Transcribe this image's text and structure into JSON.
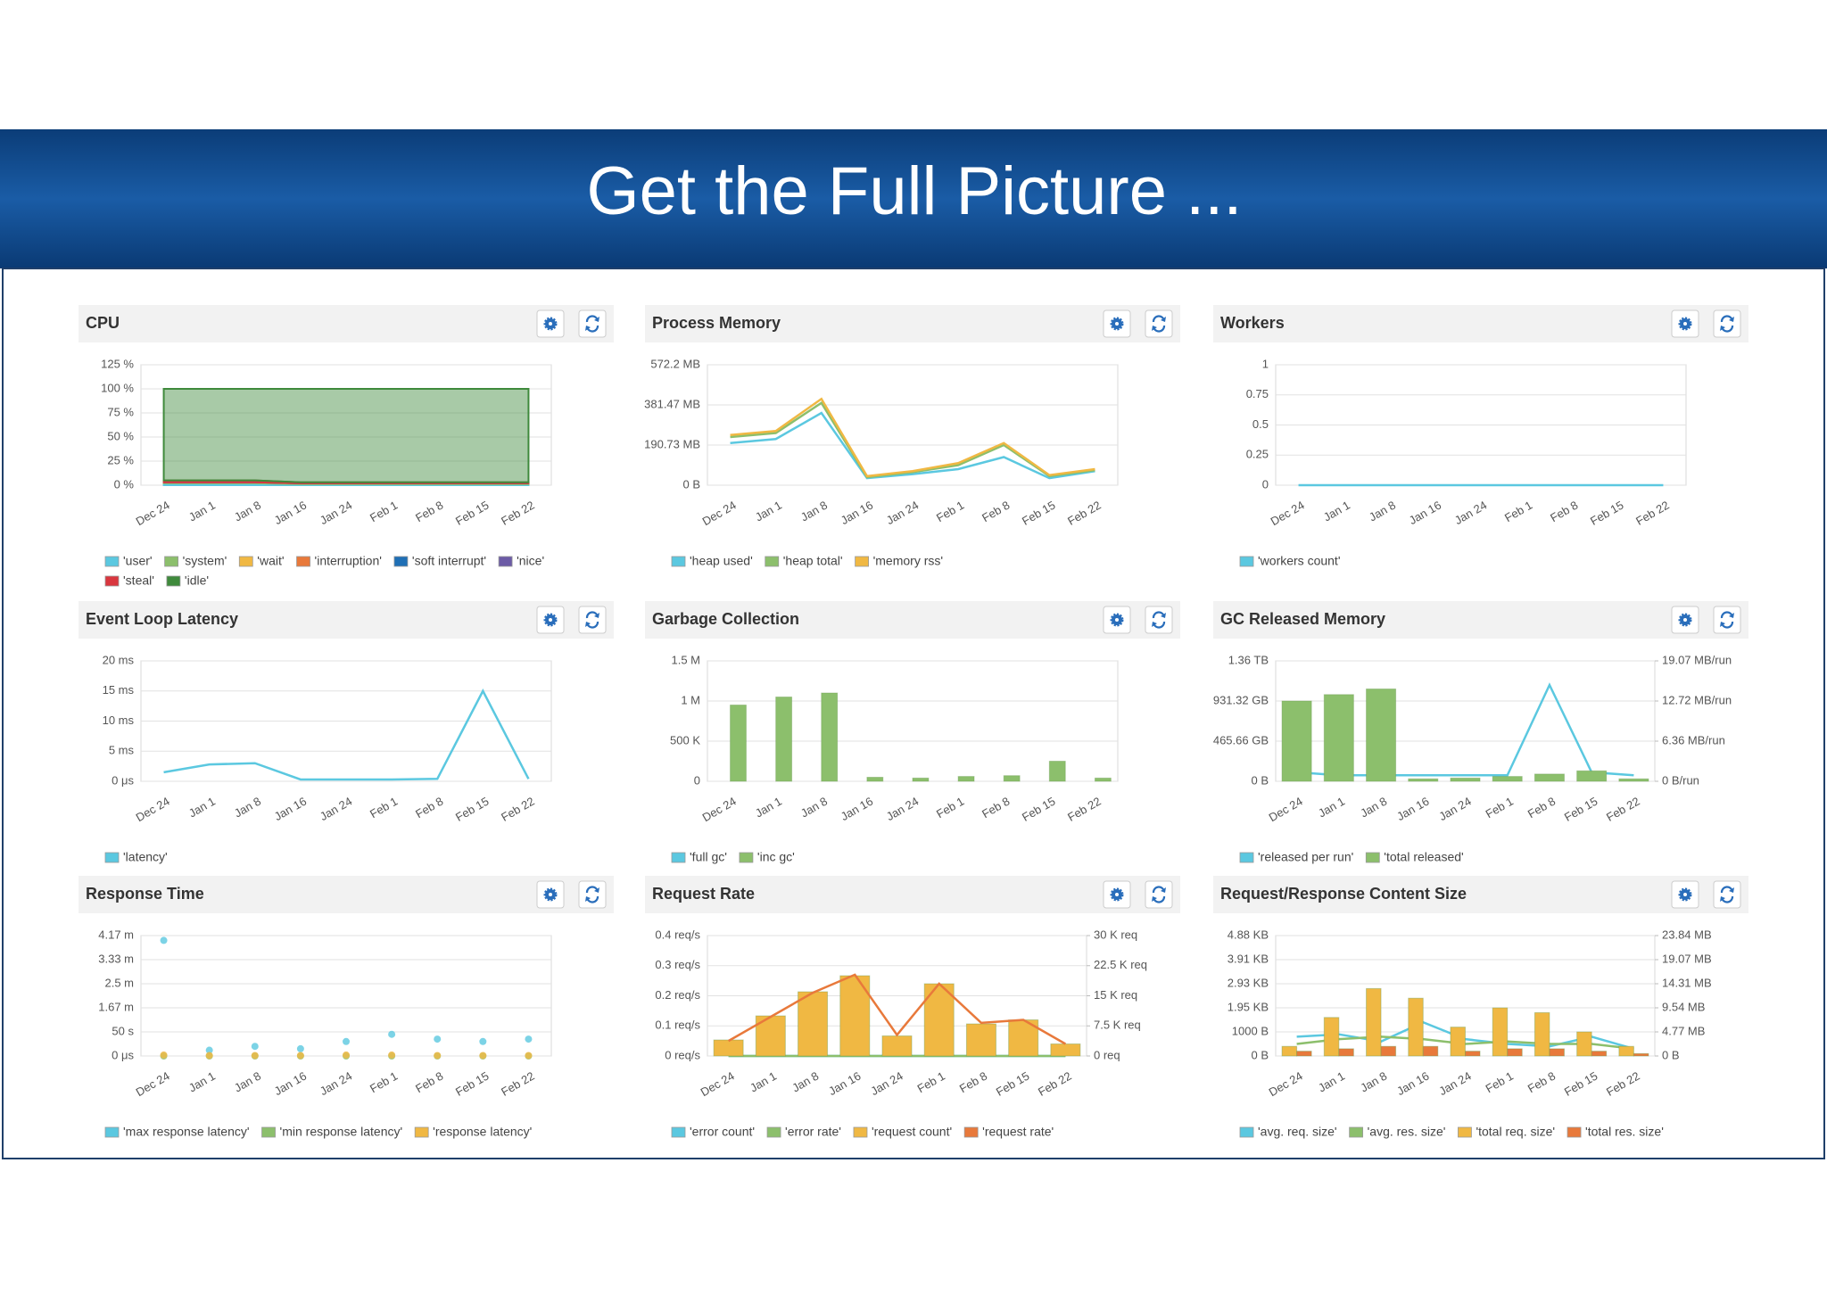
{
  "slide_title": "Get the Full Picture ...",
  "chart_data": [
    {
      "type": "area",
      "title": "CPU",
      "categories": [
        "Dec 24",
        "Jan 1",
        "Jan 8",
        "Jan 16",
        "Jan 24",
        "Feb 1",
        "Feb 8",
        "Feb 15",
        "Feb 22"
      ],
      "ylim": [
        0,
        125
      ],
      "yticks": [
        {
          "value": 0,
          "label": "0 %"
        },
        {
          "value": 25,
          "label": "25 %"
        },
        {
          "value": 50,
          "label": "50 %"
        },
        {
          "value": 75,
          "label": "75 %"
        },
        {
          "value": 100,
          "label": "100 %"
        },
        {
          "value": 125,
          "label": "125 %"
        }
      ],
      "grid": true,
      "legend": "bottom",
      "series": [
        {
          "name": "'user'",
          "color": "#5bc8e0",
          "values": [
            2,
            2,
            2,
            1,
            1,
            1,
            1,
            1,
            1
          ]
        },
        {
          "name": "'system'",
          "color": "#8cbf6c",
          "values": [
            1,
            1,
            1,
            1,
            1,
            1,
            1,
            1,
            1
          ]
        },
        {
          "name": "'wait'",
          "color": "#f0b843",
          "values": [
            0,
            0,
            0,
            0,
            0,
            0,
            0,
            0,
            0
          ]
        },
        {
          "name": "'interruption'",
          "color": "#e8793b",
          "values": [
            0,
            0,
            0,
            0,
            0,
            0,
            0,
            0,
            0
          ]
        },
        {
          "name": "'soft interrupt'",
          "color": "#1f6fb5",
          "values": [
            0,
            0,
            0,
            0,
            0,
            0,
            0,
            0,
            0
          ]
        },
        {
          "name": "'nice'",
          "color": "#6c5ba6",
          "values": [
            0,
            0,
            0,
            0,
            0,
            0,
            0,
            0,
            0
          ]
        },
        {
          "name": "'steal'",
          "color": "#d9363e",
          "values": [
            2,
            2,
            2,
            1,
            1,
            1,
            1,
            1,
            1
          ]
        },
        {
          "name": "'idle'",
          "color": "#3f8a3c",
          "values": [
            95,
            95,
            95,
            97,
            97,
            97,
            97,
            97,
            97
          ]
        }
      ]
    },
    {
      "type": "line",
      "title": "Process Memory",
      "categories": [
        "Dec 24",
        "Jan 1",
        "Jan 8",
        "Jan 16",
        "Jan 24",
        "Feb 1",
        "Feb 8",
        "Feb 15",
        "Feb 22"
      ],
      "ylim": [
        0,
        600000000
      ],
      "yticks": [
        {
          "value": 0,
          "label": "0 B"
        },
        {
          "value": 200000000,
          "label": "190.73 MB"
        },
        {
          "value": 400000000,
          "label": "381.47 MB"
        },
        {
          "value": 600000000,
          "label": "572.2 MB"
        }
      ],
      "grid": true,
      "legend": "bottom",
      "series": [
        {
          "name": "'heap used'",
          "color": "#5bc8e0",
          "values": [
            210000000,
            230000000,
            360000000,
            35000000,
            55000000,
            80000000,
            140000000,
            35000000,
            70000000
          ]
        },
        {
          "name": "'heap total'",
          "color": "#8cbf6c",
          "values": [
            240000000,
            260000000,
            410000000,
            40000000,
            65000000,
            100000000,
            200000000,
            45000000,
            75000000
          ]
        },
        {
          "name": "'memory rss'",
          "color": "#f0b843",
          "values": [
            250000000,
            270000000,
            430000000,
            45000000,
            70000000,
            110000000,
            210000000,
            50000000,
            80000000
          ]
        }
      ]
    },
    {
      "type": "line",
      "title": "Workers",
      "categories": [
        "Dec 24",
        "Jan 1",
        "Jan 8",
        "Jan 16",
        "Jan 24",
        "Feb 1",
        "Feb 8",
        "Feb 15",
        "Feb 22"
      ],
      "ylim": [
        0,
        1
      ],
      "yticks": [
        0,
        0.25,
        0.5,
        0.75,
        1
      ],
      "grid": true,
      "legend": "bottom",
      "series": [
        {
          "name": "'workers count'",
          "color": "#5bc8e0",
          "values": [
            0,
            0,
            0,
            0,
            0,
            0,
            0,
            0,
            0
          ]
        }
      ]
    },
    {
      "type": "line",
      "title": "Event Loop Latency",
      "categories": [
        "Dec 24",
        "Jan 1",
        "Jan 8",
        "Jan 16",
        "Jan 24",
        "Feb 1",
        "Feb 8",
        "Feb 15",
        "Feb 22"
      ],
      "ylim": [
        0,
        20
      ],
      "yticks": [
        {
          "value": 0,
          "label": "0 μs"
        },
        {
          "value": 5,
          "label": "5 ms"
        },
        {
          "value": 10,
          "label": "10 ms"
        },
        {
          "value": 15,
          "label": "15 ms"
        },
        {
          "value": 20,
          "label": "20 ms"
        }
      ],
      "grid": true,
      "legend": "bottom",
      "series": [
        {
          "name": "'latency'",
          "color": "#5bc8e0",
          "values": [
            1.5,
            2.8,
            3,
            0.3,
            0.3,
            0.3,
            0.4,
            15,
            0.4
          ]
        }
      ]
    },
    {
      "type": "bar",
      "title": "Garbage Collection",
      "categories": [
        "Dec 24",
        "Jan 1",
        "Jan 8",
        "Jan 16",
        "Jan 24",
        "Feb 1",
        "Feb 8",
        "Feb 15",
        "Feb 22"
      ],
      "ylim": [
        0,
        1500000
      ],
      "yticks": [
        0,
        {
          "value": 500000,
          "label": "500 K"
        },
        {
          "value": 1000000,
          "label": "1 M"
        },
        {
          "value": 1500000,
          "label": "1.5 M"
        }
      ],
      "grid": true,
      "legend": "bottom",
      "series": [
        {
          "name": "'full gc'",
          "color": "#5bc8e0",
          "values": [
            0,
            0,
            0,
            0,
            0,
            0,
            0,
            0,
            0
          ]
        },
        {
          "name": "'inc gc'",
          "color": "#8cbf6c",
          "values": [
            950000,
            1050000,
            1100000,
            50000,
            40000,
            60000,
            70000,
            250000,
            40000
          ]
        }
      ]
    },
    {
      "type": "combo",
      "title": "GC Released Memory",
      "categories": [
        "Dec 24",
        "Jan 1",
        "Jan 8",
        "Jan 16",
        "Jan 24",
        "Feb 1",
        "Feb 8",
        "Feb 15",
        "Feb 22"
      ],
      "ylim": [
        0,
        1500000000000
      ],
      "yticks": [
        {
          "value": 0,
          "label": "0 B"
        },
        {
          "value": 500000000000,
          "label": "465.66 GB"
        },
        {
          "value": 1000000000000,
          "label": "931.32 GB"
        },
        {
          "value": 1500000000000,
          "label": "1.36 TB"
        }
      ],
      "y2lim": [
        0,
        20000000
      ],
      "y2ticks": [
        {
          "value": 0,
          "label": "0 B/run"
        },
        {
          "value": 6666667,
          "label": "6.36 MB/run"
        },
        {
          "value": 13333333,
          "label": "12.72 MB/run"
        },
        {
          "value": 20000000,
          "label": "19.07 MB/run"
        }
      ],
      "grid": true,
      "legend": "bottom",
      "series": [
        {
          "name": "'released per run'",
          "color": "#5bc8e0",
          "style": "line",
          "axis": "y2",
          "values": [
            1500000,
            1000000,
            1000000,
            1000000,
            1000000,
            1000000,
            16000000,
            1500000,
            1000000
          ]
        },
        {
          "name": "'total released'",
          "color": "#8cbf6c",
          "style": "bar",
          "values": [
            1000000000000,
            1080000000000,
            1150000000000,
            30000000000,
            40000000000,
            60000000000,
            90000000000,
            130000000000,
            30000000000
          ]
        }
      ]
    },
    {
      "type": "scatter",
      "title": "Response Time",
      "categories": [
        "Dec 24",
        "Jan 1",
        "Jan 8",
        "Jan 16",
        "Jan 24",
        "Feb 1",
        "Feb 8",
        "Feb 15",
        "Feb 22"
      ],
      "ylim": [
        0,
        250
      ],
      "yticks": [
        {
          "value": 0,
          "label": "0 μs"
        },
        {
          "value": 50,
          "label": "50 s"
        },
        {
          "value": 100,
          "label": "1.67 m"
        },
        {
          "value": 150,
          "label": "2.5 m"
        },
        {
          "value": 200,
          "label": "3.33 m"
        },
        {
          "value": 250,
          "label": "4.17 m"
        }
      ],
      "grid": true,
      "legend": "bottom",
      "series": [
        {
          "name": "'max response latency'",
          "color": "#5bc8e0",
          "values": [
            240,
            12,
            20,
            15,
            30,
            45,
            35,
            30,
            35
          ]
        },
        {
          "name": "'min response latency'",
          "color": "#8cbf6c",
          "values": [
            0,
            0,
            0,
            0,
            0,
            0,
            0,
            0,
            0
          ]
        },
        {
          "name": "'response latency'",
          "color": "#f0b843",
          "values": [
            2,
            1,
            1,
            1,
            2,
            2,
            1,
            1,
            1
          ]
        }
      ]
    },
    {
      "type": "combo",
      "title": "Request Rate",
      "categories": [
        "Dec 24",
        "Jan 1",
        "Jan 8",
        "Jan 16",
        "Jan 24",
        "Feb 1",
        "Feb 8",
        "Feb 15",
        "Feb 22"
      ],
      "ylim": [
        0,
        0.4
      ],
      "yticks": [
        {
          "value": 0,
          "label": "0 req/s"
        },
        {
          "value": 0.1,
          "label": "0.1 req/s"
        },
        {
          "value": 0.2,
          "label": "0.2 req/s"
        },
        {
          "value": 0.3,
          "label": "0.3 req/s"
        },
        {
          "value": 0.4,
          "label": "0.4 req/s"
        }
      ],
      "y2lim": [
        0,
        30000
      ],
      "y2ticks": [
        {
          "value": 0,
          "label": "0 req"
        },
        {
          "value": 7500,
          "label": "7.5 K req"
        },
        {
          "value": 15000,
          "label": "15 K req"
        },
        {
          "value": 22500,
          "label": "22.5 K req"
        },
        {
          "value": 30000,
          "label": "30 K req"
        }
      ],
      "grid": true,
      "legend": "bottom",
      "series": [
        {
          "name": "'error count'",
          "color": "#5bc8e0",
          "style": "line",
          "axis": "y2",
          "values": [
            0,
            0,
            0,
            0,
            0,
            0,
            0,
            0,
            0
          ]
        },
        {
          "name": "'error rate'",
          "color": "#8cbf6c",
          "style": "line",
          "values": [
            0,
            0,
            0,
            0,
            0,
            0,
            0,
            0,
            0
          ]
        },
        {
          "name": "'request count'",
          "color": "#f0b843",
          "style": "bar",
          "axis": "y2",
          "values": [
            4000,
            10000,
            16000,
            20000,
            5000,
            18000,
            8000,
            9000,
            3000
          ]
        },
        {
          "name": "'request rate'",
          "color": "#e8793b",
          "style": "line",
          "values": [
            0.05,
            0.13,
            0.21,
            0.27,
            0.07,
            0.24,
            0.11,
            0.12,
            0.04
          ]
        }
      ]
    },
    {
      "type": "combo",
      "title": "Request/Response Content Size",
      "categories": [
        "Dec 24",
        "Jan 1",
        "Jan 8",
        "Jan 16",
        "Jan 24",
        "Feb 1",
        "Feb 8",
        "Feb 15",
        "Feb 22"
      ],
      "ylim": [
        0,
        5000
      ],
      "yticks": [
        {
          "value": 0,
          "label": "0 B"
        },
        {
          "value": 1000,
          "label": "1000 B"
        },
        {
          "value": 2000,
          "label": "1.95 KB"
        },
        {
          "value": 3000,
          "label": "2.93 KB"
        },
        {
          "value": 4000,
          "label": "3.91 KB"
        },
        {
          "value": 5000,
          "label": "4.88 KB"
        }
      ],
      "y2lim": [
        0,
        25000000
      ],
      "y2ticks": [
        {
          "value": 0,
          "label": "0 B"
        },
        {
          "value": 5000000,
          "label": "4.77 MB"
        },
        {
          "value": 10000000,
          "label": "9.54 MB"
        },
        {
          "value": 15000000,
          "label": "14.31 MB"
        },
        {
          "value": 20000000,
          "label": "19.07 MB"
        },
        {
          "value": 25000000,
          "label": "23.84 MB"
        }
      ],
      "grid": true,
      "legend": "bottom",
      "series": [
        {
          "name": "'avg. req. size'",
          "color": "#5bc8e0",
          "style": "line",
          "values": [
            800,
            900,
            600,
            1400,
            700,
            500,
            400,
            800,
            300
          ]
        },
        {
          "name": "'avg. res. size'",
          "color": "#8cbf6c",
          "style": "line",
          "values": [
            500,
            700,
            800,
            700,
            500,
            600,
            500,
            500,
            300
          ]
        },
        {
          "name": "'total req. size'",
          "color": "#f0b843",
          "style": "bar",
          "axis": "y2",
          "values": [
            2000000,
            8000000,
            14000000,
            12000000,
            6000000,
            10000000,
            9000000,
            5000000,
            2000000
          ]
        },
        {
          "name": "'total res. size'",
          "color": "#e8793b",
          "style": "bar",
          "axis": "y2",
          "values": [
            1000000,
            1500000,
            2000000,
            2000000,
            1000000,
            1500000,
            1500000,
            1000000,
            500000
          ]
        }
      ]
    }
  ]
}
